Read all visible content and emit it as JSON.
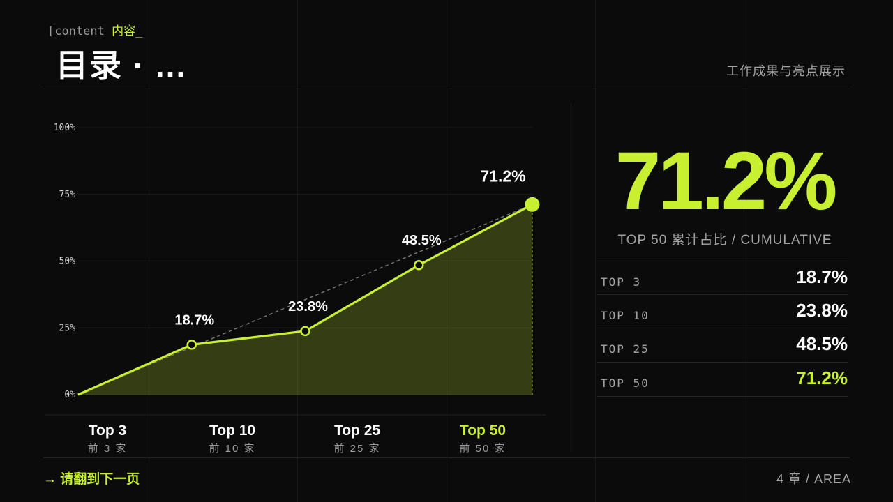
{
  "header": {
    "kicker_prefix": "[content ",
    "kicker_accent": "内容_",
    "title": "目录 · ...",
    "subtitle": "工作成果与亮点展示"
  },
  "chart_data": {
    "type": "area",
    "categories": [
      "Top 3",
      "Top 10",
      "Top 25",
      "Top 50"
    ],
    "category_sublabels": [
      "前 3 家",
      "前 10 家",
      "前 25 家",
      "前 50 家"
    ],
    "x_highlight_index": 3,
    "values": [
      18.7,
      23.8,
      48.5,
      71.2
    ],
    "data_labels": [
      "18.7%",
      "23.8%",
      "48.5%",
      "71.2%"
    ],
    "baseline_value": 0,
    "y_ticks": [
      0,
      25,
      50,
      75,
      100
    ],
    "y_tick_labels": [
      "0%",
      "25%",
      "50%",
      "75%",
      "100%"
    ],
    "ylim": [
      0,
      100
    ],
    "grid": true,
    "has_trend_line": true,
    "series_color": "#c8f031"
  },
  "summary": {
    "big_value": "71.2%",
    "caption": "TOP 50  累计占比  / CUMULATIVE",
    "rows": [
      {
        "label": "TOP 3",
        "value": "18.7%"
      },
      {
        "label": "TOP 10",
        "value": "23.8%"
      },
      {
        "label": "TOP 25",
        "value": "48.5%"
      },
      {
        "label": "TOP 50",
        "value": "71.2%"
      }
    ]
  },
  "footer": {
    "next_page": "→ 请翻到下一页",
    "right": "4  章  / AREA"
  }
}
